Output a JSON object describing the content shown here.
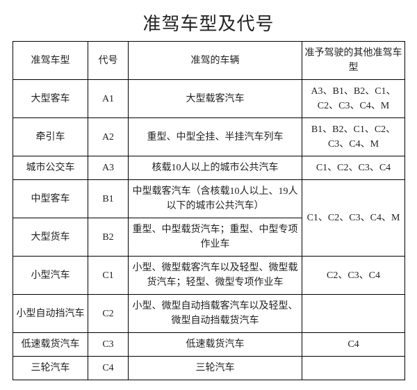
{
  "title": "准驾车型及代号",
  "headers": {
    "type": "准驾车型",
    "code": "代号",
    "vehicles": "准驾的车辆",
    "allowed": "准予驾驶的其他准驾车型"
  },
  "rows": {
    "a1": {
      "type": "大型客车",
      "code": "A1",
      "vehicles": "大型载客汽车",
      "allowed": "A3、B1、B2、C1、C2、C3、C4、M"
    },
    "a2": {
      "type": "牵引车",
      "code": "A2",
      "vehicles": "重型、中型全挂、半挂汽车列车",
      "allowed": "B1、B2、C1、C2、C3、C4、M"
    },
    "a3": {
      "type": "城市公交车",
      "code": "A3",
      "vehicles": "核载10人以上的城市公共汽车",
      "allowed": "C1、C2、C3、C4"
    },
    "b1": {
      "type": "中型客车",
      "code": "B1",
      "vehicles": "中型载客汽车（含核载10人以上、19人以下的城市公共汽车）"
    },
    "b2": {
      "type": "大型货车",
      "code": "B2",
      "vehicles": "重型、中型载货汽车；重型、中型专项作业车"
    },
    "b_allowed": "C1、C2、C3、C4、M",
    "c1": {
      "type": "小型汽车",
      "code": "C1",
      "vehicles": "小型、微型载客汽车以及轻型、微型载货汽车；轻型、微型专项作业车",
      "allowed": "C2、C3、C4"
    },
    "c2": {
      "type": "小型自动挡汽车",
      "code": "C2",
      "vehicles": "小型、微型自动挡载客汽车以及轻型、微型自动挡载货汽车",
      "allowed": ""
    },
    "c3": {
      "type": "低速载货汽车",
      "code": "C3",
      "vehicles": "低速载货汽车",
      "allowed": "C4"
    },
    "c4": {
      "type": "三轮汽车",
      "code": "C4",
      "vehicles": "三轮汽车",
      "allowed": ""
    }
  }
}
